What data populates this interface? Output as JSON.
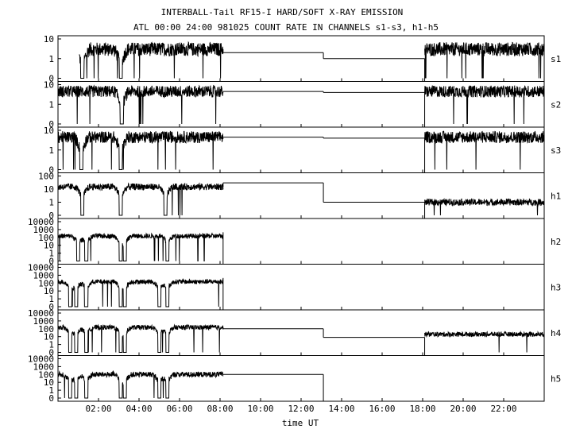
{
  "header": {
    "title": "INTERBALL-Tail RF15-I HARD/SOFT X-RAY EMISSION",
    "subtitle": "ATL 00:00 24:00 981025  COUNT RATE IN CHANNELS s1-s3, h1-h5"
  },
  "chart_data": {
    "type": "line",
    "xlabel": "time UT",
    "xlim": [
      0,
      24
    ],
    "x_ticks": [
      "02:00",
      "04:00",
      "06:00",
      "08:00",
      "10:00",
      "12:00",
      "14:00",
      "16:00",
      "18:00",
      "20:00",
      "22:00"
    ],
    "x_tick_values": [
      2,
      4,
      6,
      8,
      10,
      12,
      14,
      16,
      18,
      20,
      22
    ],
    "grid": false,
    "panels": [
      {
        "name": "s1",
        "y_ticks": [
          "10",
          "1",
          "0"
        ],
        "ymax": 10,
        "base": 3,
        "spread": 0.35,
        "segments": [
          [
            1.05,
            8.15
          ]
        ],
        "flat": [
          [
            8.15,
            13.1,
            2.0
          ],
          [
            13.1,
            18.1,
            1.0
          ]
        ],
        "late": [
          [
            18.1,
            24
          ]
        ],
        "late_base": 3,
        "dips": [
          1.2,
          3.1
        ],
        "steps": [
          8.15,
          13.1,
          18.1
        ]
      },
      {
        "name": "s2",
        "y_ticks": [
          "10",
          "1",
          "0"
        ],
        "ymax": 10,
        "base": 4.5,
        "spread": 0.3,
        "segments": [
          [
            0,
            8.15
          ]
        ],
        "flat": [
          [
            8.15,
            13.1,
            4.5
          ],
          [
            13.1,
            18.1,
            4.0
          ]
        ],
        "late": [
          [
            18.1,
            24
          ]
        ],
        "late_base": 4.5,
        "dips": [
          3.15
        ],
        "steps": []
      },
      {
        "name": "s3",
        "y_ticks": [
          "10",
          "1",
          "0"
        ],
        "ymax": 10,
        "base": 4.5,
        "spread": 0.3,
        "segments": [
          [
            0,
            8.15
          ]
        ],
        "flat": [
          [
            8.15,
            13.1,
            4.5
          ],
          [
            13.1,
            18.1,
            4.0
          ]
        ],
        "late": [
          [
            18.1,
            24
          ]
        ],
        "late_base": 4.5,
        "dips": [
          1.15,
          3.1
        ],
        "steps": []
      },
      {
        "name": "h1",
        "y_ticks": [
          "100",
          "10",
          "1",
          "0"
        ],
        "ymax": 1000,
        "base": 150,
        "spread": 0.25,
        "segments": [
          [
            0,
            8.15
          ]
        ],
        "flat": [
          [
            8.15,
            13.1,
            300
          ],
          [
            13.1,
            18.1,
            10
          ]
        ],
        "late": [
          [
            18.1,
            24
          ]
        ],
        "late_base": 10,
        "dips": [
          1.2,
          3.1,
          5.3
        ],
        "steps": [
          8.15,
          13.1
        ]
      },
      {
        "name": "h2",
        "y_ticks": [
          "10000",
          "1000",
          "100",
          "10",
          "1",
          "0"
        ],
        "ymax": 10000,
        "base": 150,
        "spread": 0.3,
        "segments": [
          [
            0,
            8.15
          ]
        ],
        "flat": [],
        "late": [],
        "late_base": 0,
        "dips": [
          1.0,
          1.4,
          3.1,
          3.3,
          5.4
        ],
        "steps": [
          8.15
        ]
      },
      {
        "name": "h3",
        "y_ticks": [
          "10000",
          "1000",
          "100",
          "10",
          "1",
          "0"
        ],
        "ymax": 10000,
        "base": 150,
        "spread": 0.3,
        "segments": [
          [
            0,
            8.15
          ]
        ],
        "flat": [],
        "late": [],
        "late_base": 0,
        "dips": [
          0.6,
          0.9,
          1.4,
          3.1,
          3.3,
          5.0,
          5.4
        ],
        "steps": [
          8.15
        ]
      },
      {
        "name": "h4",
        "y_ticks": [
          "10000",
          "1000",
          "100",
          "10",
          "1",
          "0"
        ],
        "ymax": 10000,
        "base": 150,
        "spread": 0.3,
        "segments": [
          [
            0,
            8.15
          ]
        ],
        "flat": [
          [
            8.15,
            13.1,
            100
          ],
          [
            13.1,
            18.1,
            8
          ]
        ],
        "late": [
          [
            18.1,
            24
          ]
        ],
        "late_base": 20,
        "dips": [
          0.6,
          0.9,
          1.4,
          3.1,
          3.3,
          5.0,
          5.4
        ],
        "steps": [
          8.15,
          13.1
        ]
      },
      {
        "name": "h5",
        "y_ticks": [
          "10000",
          "1000",
          "100",
          "10",
          "1",
          "0"
        ],
        "ymax": 10000,
        "base": 100,
        "spread": 0.35,
        "segments": [
          [
            0,
            8.15
          ]
        ],
        "flat": [
          [
            8.15,
            13.1,
            100
          ]
        ],
        "late": [],
        "late_base": 0,
        "dips": [
          0.6,
          0.9,
          1.4,
          3.1,
          3.3,
          5.0,
          5.4
        ],
        "steps": [
          8.15,
          13.1
        ]
      }
    ]
  }
}
